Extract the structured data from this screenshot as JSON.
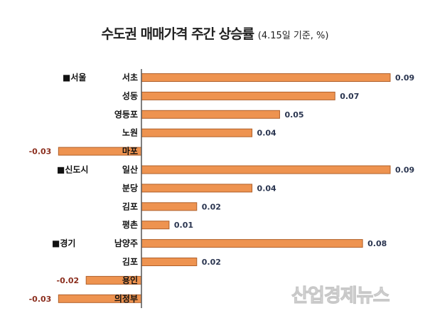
{
  "chart_data": {
    "type": "bar",
    "orientation": "horizontal",
    "title": "수도권 매매가격 주간 상승률",
    "subtitle": "(4.15일 기준, %)",
    "groups": [
      {
        "label": "■서울",
        "start_index": 0
      },
      {
        "label": "■신도시",
        "start_index": 5
      },
      {
        "label": "■경기",
        "start_index": 9
      }
    ],
    "categories": [
      "서초",
      "성동",
      "영등포",
      "노원",
      "마포",
      "일산",
      "분당",
      "김포",
      "평촌",
      "남양주",
      "김포",
      "용인",
      "의정부"
    ],
    "values": [
      0.09,
      0.07,
      0.05,
      0.04,
      -0.03,
      0.09,
      0.04,
      0.02,
      0.01,
      0.08,
      0.02,
      -0.02,
      -0.03
    ],
    "value_labels": [
      "0.09",
      "0.07",
      "0.05",
      "0.04",
      "-0.03",
      "0.09",
      "0.04",
      "0.02",
      "0.01",
      "0.08",
      "0.02",
      "-0.02",
      "-0.03"
    ],
    "xlim": [
      -0.03,
      0.09
    ],
    "grid": false,
    "legend": "none",
    "colors": {
      "bar": "#ee9350",
      "bar_border": "#b0602a",
      "positive_label": "#2a3550",
      "negative_label": "#8b2e1e",
      "axis": "#555555"
    }
  },
  "watermark": "산업경제뉴스"
}
